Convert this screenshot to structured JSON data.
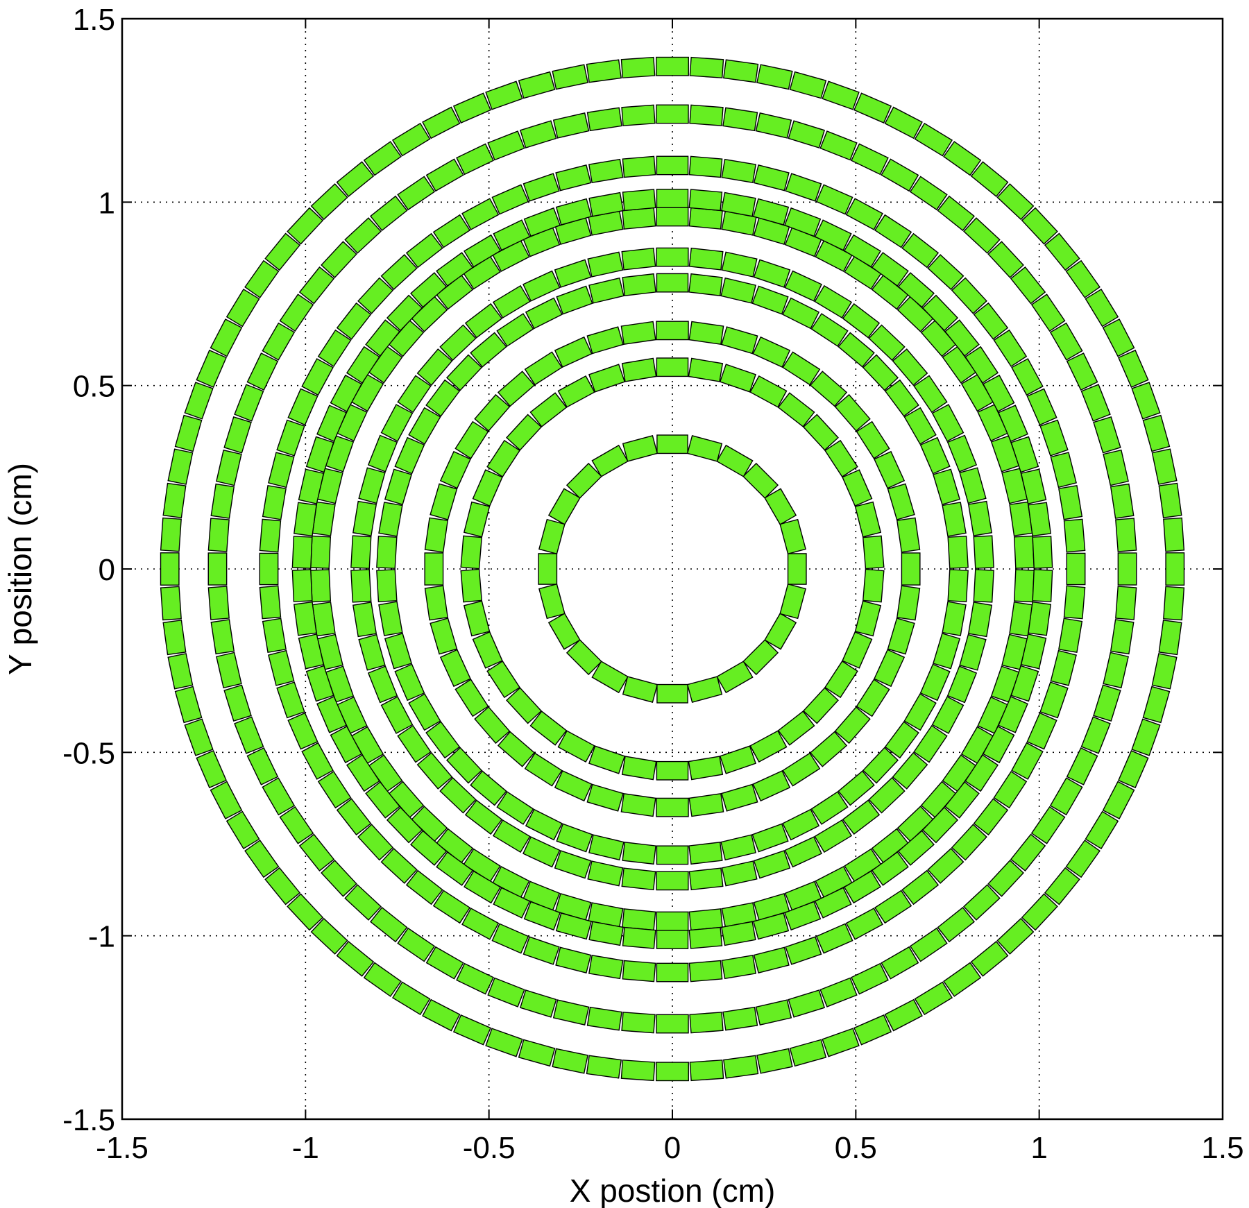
{
  "chart_data": {
    "type": "scatter",
    "title": "",
    "xlabel": "X postion (cm)",
    "ylabel": "Y position (cm)",
    "xlim": [
      -1.5,
      1.5
    ],
    "ylim": [
      -1.5,
      1.5
    ],
    "xticks": [
      "-1.5",
      "-1",
      "-0.5",
      "0",
      "0.5",
      "1",
      "1.5"
    ],
    "yticks": [
      "-1.5",
      "-1",
      "-0.5",
      "0",
      "0.5",
      "1",
      "1.5"
    ],
    "grid": true,
    "marker_color": "#66ee22",
    "marker_edge_color": "#000000",
    "rings": [
      {
        "radius": 0.34,
        "count": 24
      },
      {
        "radius": 0.55,
        "count": 38
      },
      {
        "radius": 0.65,
        "count": 44
      },
      {
        "radius": 0.78,
        "count": 54
      },
      {
        "radius": 0.85,
        "count": 58
      },
      {
        "radius": 0.96,
        "count": 66
      },
      {
        "radius": 1.01,
        "count": 70
      },
      {
        "radius": 1.1,
        "count": 76
      },
      {
        "radius": 1.24,
        "count": 84
      },
      {
        "radius": 1.37,
        "count": 92
      }
    ],
    "element_size_cm": [
      0.11,
      0.05
    ]
  }
}
